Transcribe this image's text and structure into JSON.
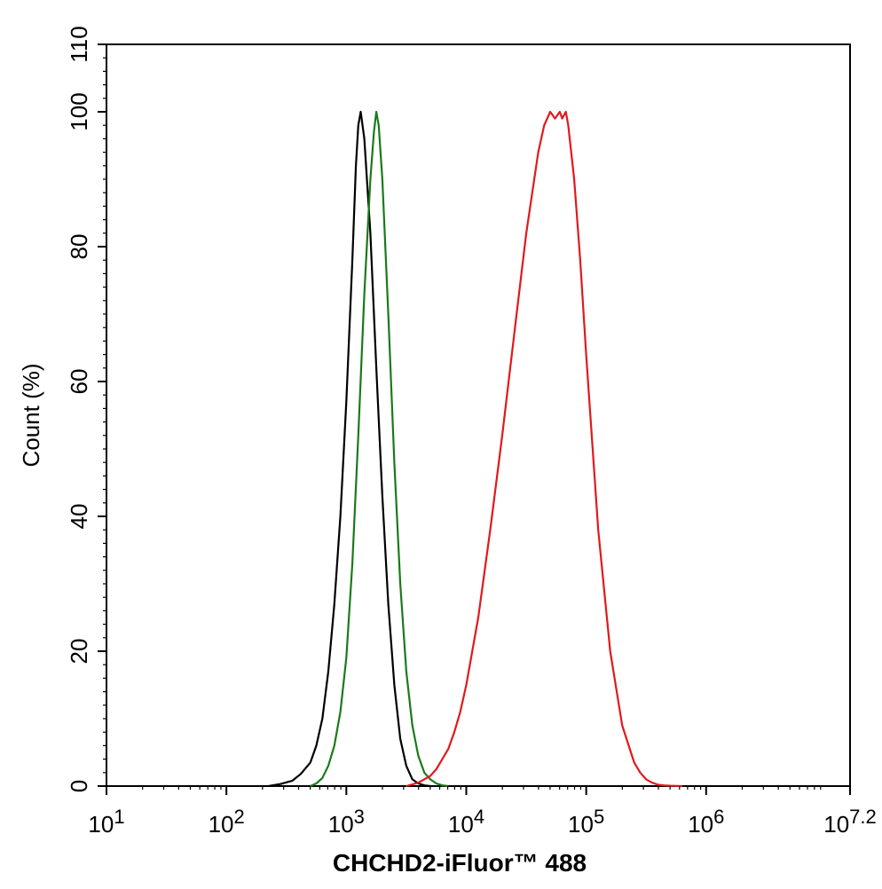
{
  "chart_data": {
    "type": "line",
    "title": "",
    "xlabel": "CHCHD2-iFluor™ 488",
    "ylabel": "Count  (%)",
    "xscale": "log",
    "xlim": [
      1,
      7.2
    ],
    "ylim": [
      0,
      110
    ],
    "x_tick_labels": [
      {
        "base": "10",
        "exp": "1"
      },
      {
        "base": "10",
        "exp": "2"
      },
      {
        "base": "10",
        "exp": "3"
      },
      {
        "base": "10",
        "exp": "4"
      },
      {
        "base": "10",
        "exp": "5"
      },
      {
        "base": "10",
        "exp": "6"
      },
      {
        "base": "10",
        "exp": "7.2"
      }
    ],
    "y_ticks": [
      "0",
      "20",
      "40",
      "60",
      "80",
      "100",
      "110"
    ],
    "grid": false,
    "series": [
      {
        "color": "#000000",
        "x": [
          2.35,
          2.45,
          2.55,
          2.62,
          2.7,
          2.75,
          2.8,
          2.85,
          2.9,
          2.95,
          3.0,
          3.05,
          3.08,
          3.1,
          3.12,
          3.15,
          3.2,
          3.25,
          3.3,
          3.35,
          3.4,
          3.45,
          3.5,
          3.55,
          3.6,
          3.65,
          3.7
        ],
        "values": [
          0,
          0.3,
          0.8,
          1.8,
          3.5,
          6,
          10,
          17,
          27,
          40,
          57,
          78,
          92,
          98,
          100,
          96,
          82,
          62,
          43,
          27,
          15,
          7,
          3,
          1,
          0.4,
          0.1,
          0
        ]
      },
      {
        "color": "#1a7a1a",
        "x": [
          2.7,
          2.75,
          2.8,
          2.85,
          2.9,
          2.95,
          3.0,
          3.05,
          3.1,
          3.15,
          3.2,
          3.23,
          3.25,
          3.27,
          3.3,
          3.35,
          3.4,
          3.45,
          3.5,
          3.55,
          3.6,
          3.65,
          3.7,
          3.75,
          3.8,
          3.85
        ],
        "values": [
          0,
          0.4,
          1.2,
          3,
          6,
          11,
          19,
          33,
          52,
          73,
          90,
          97,
          100,
          98,
          90,
          70,
          48,
          30,
          17,
          9,
          4.5,
          2,
          1,
          0.4,
          0.1,
          0
        ]
      },
      {
        "color": "#e0191b",
        "x": [
          3.5,
          3.6,
          3.7,
          3.75,
          3.8,
          3.85,
          3.9,
          3.95,
          4.0,
          4.1,
          4.2,
          4.3,
          4.4,
          4.5,
          4.6,
          4.65,
          4.7,
          4.74,
          4.78,
          4.8,
          4.83,
          4.85,
          4.9,
          4.95,
          5.0,
          5.1,
          5.2,
          5.3,
          5.4,
          5.45,
          5.5,
          5.55,
          5.6,
          5.65,
          5.7,
          5.8
        ],
        "values": [
          0,
          0.5,
          1.5,
          2.5,
          4,
          5.5,
          8,
          11,
          15,
          25,
          38,
          52,
          67,
          82,
          94,
          98,
          100,
          99,
          100,
          99,
          100,
          98,
          90,
          78,
          64,
          38,
          20,
          9,
          3.5,
          2,
          1,
          0.5,
          0.2,
          0.1,
          0.05,
          0
        ]
      }
    ]
  }
}
